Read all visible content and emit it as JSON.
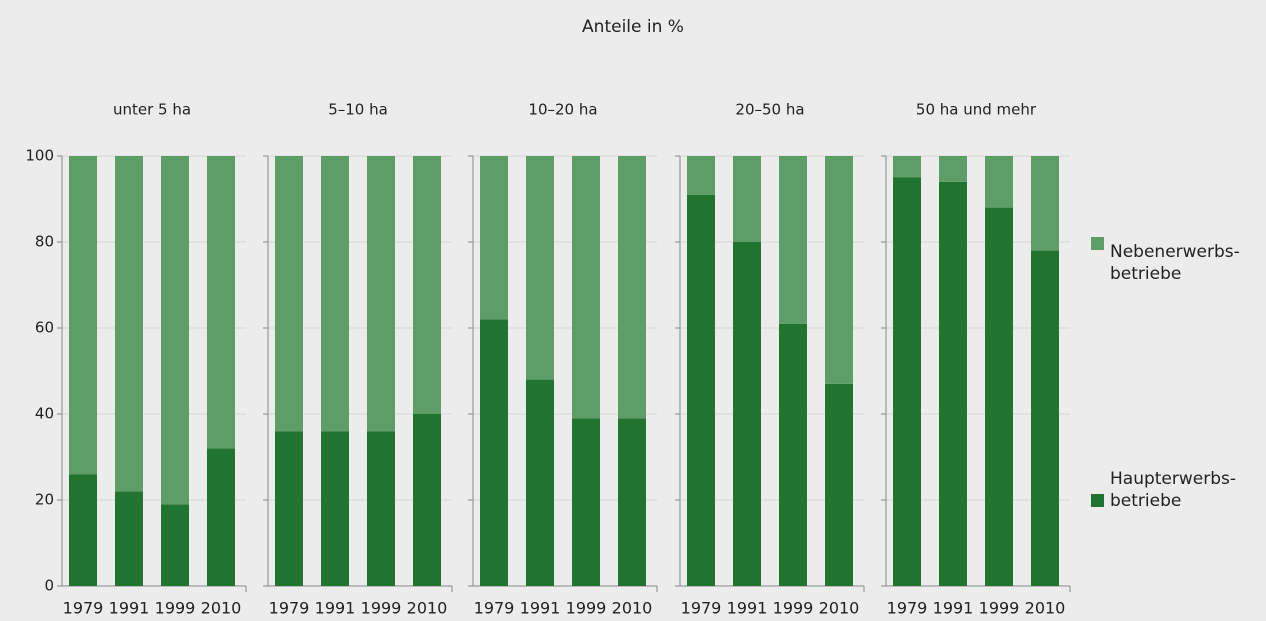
{
  "title": "Anteile in %",
  "chart_data": [
    {
      "type": "stacked-bar",
      "title": "unter 5 ha",
      "categories": [
        "1979",
        "1991",
        "1999",
        "2010"
      ],
      "series": [
        {
          "name": "Haupterwerbs-\nbetriebe",
          "color": "#21742f",
          "values": [
            26,
            22,
            19,
            32
          ]
        },
        {
          "name": "Nebenerwerbs-\nbetriebe",
          "color": "#5c9e65",
          "values": [
            74,
            78,
            81,
            68
          ]
        }
      ],
      "ylim": [
        0,
        100
      ],
      "yticks": [
        0,
        20,
        40,
        60,
        80,
        100
      ],
      "grid": true
    },
    {
      "type": "stacked-bar",
      "title": "5–10 ha",
      "categories": [
        "1979",
        "1991",
        "1999",
        "2010"
      ],
      "series": [
        {
          "name": "Haupterwerbs-\nbetriebe",
          "color": "#21742f",
          "values": [
            36,
            36,
            36,
            40
          ]
        },
        {
          "name": "Nebenerwerbs-\nbetriebe",
          "color": "#5c9e65",
          "values": [
            64,
            64,
            64,
            60
          ]
        }
      ],
      "ylim": [
        0,
        100
      ],
      "yticks": [
        0,
        20,
        40,
        60,
        80,
        100
      ],
      "grid": true
    },
    {
      "type": "stacked-bar",
      "title": "10–20 ha",
      "categories": [
        "1979",
        "1991",
        "1999",
        "2010"
      ],
      "series": [
        {
          "name": "Haupterwerbs-\nbetriebe",
          "color": "#21742f",
          "values": [
            62,
            48,
            39,
            39
          ]
        },
        {
          "name": "Nebenerwerbs-\nbetriebe",
          "color": "#5c9e65",
          "values": [
            38,
            52,
            61,
            61
          ]
        }
      ],
      "ylim": [
        0,
        100
      ],
      "yticks": [
        0,
        20,
        40,
        60,
        80,
        100
      ],
      "grid": true
    },
    {
      "type": "stacked-bar",
      "title": "20–50 ha",
      "categories": [
        "1979",
        "1991",
        "1999",
        "2010"
      ],
      "series": [
        {
          "name": "Haupterwerbs-\nbetriebe",
          "color": "#21742f",
          "values": [
            91,
            80,
            61,
            47
          ]
        },
        {
          "name": "Nebenerwerbs-\nbetriebe",
          "color": "#5c9e65",
          "values": [
            9,
            20,
            39,
            53
          ]
        }
      ],
      "ylim": [
        0,
        100
      ],
      "yticks": [
        0,
        20,
        40,
        60,
        80,
        100
      ],
      "grid": true
    },
    {
      "type": "stacked-bar",
      "title": "50 ha und mehr",
      "categories": [
        "1979",
        "1991",
        "1999",
        "2010"
      ],
      "series": [
        {
          "name": "Haupterwerbs-\nbetriebe",
          "color": "#21742f",
          "values": [
            95,
            94,
            88,
            78
          ]
        },
        {
          "name": "Nebenerwerbs-\nbetriebe",
          "color": "#5c9e65",
          "values": [
            5,
            6,
            12,
            22
          ]
        }
      ],
      "ylim": [
        0,
        100
      ],
      "yticks": [
        0,
        20,
        40,
        60,
        80,
        100
      ],
      "grid": true
    }
  ]
}
